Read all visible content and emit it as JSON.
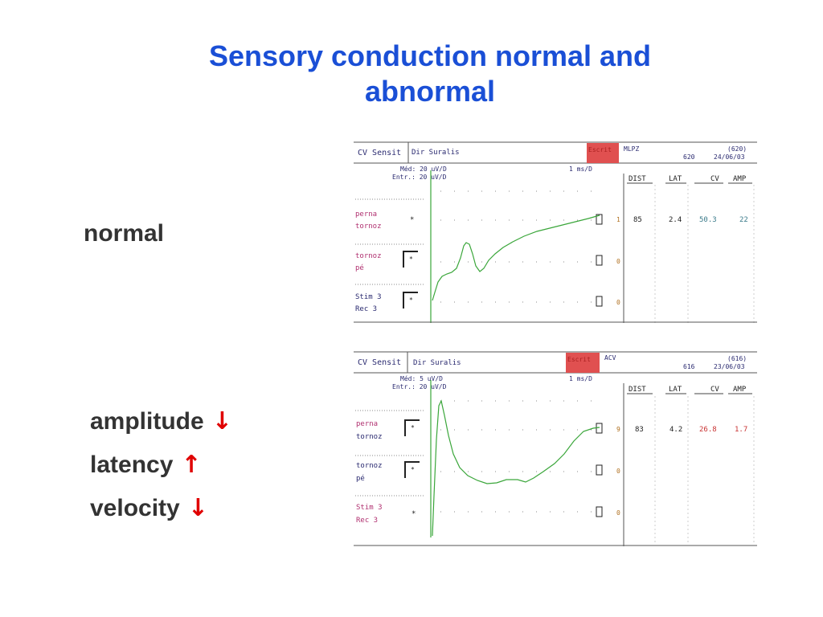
{
  "slide": {
    "title_line1": "Sensory conduction normal and",
    "title_line2": "abnormal",
    "normal_label": "normal",
    "abnormal_items": [
      {
        "label": "amplitude",
        "arrow": "↓"
      },
      {
        "label": "latency",
        "arrow": "↑"
      },
      {
        "label": "velocity",
        "arrow": "↓"
      }
    ]
  },
  "panels": [
    {
      "header": {
        "mode": "CV Sensit",
        "nerve": "Dir Suralis",
        "button": "Escrit",
        "patient": "MLPZ",
        "id1": "(620)",
        "id2": "620",
        "date": "24/06/03"
      },
      "scale": {
        "med": "Méd:  20 uV/D",
        "entr": "Entr.:  20 uV/D",
        "time": "1 ms/D"
      },
      "columns": [
        "DIST",
        "LAT",
        "CV",
        "AMP"
      ],
      "rows": [
        {
          "line1": "perna",
          "line2": "tornoz",
          "index": "1",
          "dist": "85",
          "lat": "2.4",
          "cv": "50.3",
          "amp": "22"
        },
        {
          "line1": "tornoz",
          "line2": "pé",
          "index": "0"
        },
        {
          "line1": "Stim  3",
          "line2": "Rec  3",
          "index": "0"
        }
      ]
    },
    {
      "header": {
        "mode": "CV Sensit",
        "nerve": "Dir Suralis",
        "button": "Escrit",
        "patient": "ACV",
        "id1": "(616)",
        "id2": "616",
        "date": "23/06/03"
      },
      "scale": {
        "med": "Méd:  5 uV/D",
        "entr": "Entr.:  20 uV/D",
        "time": "1 ms/D"
      },
      "columns": [
        "DIST",
        "LAT",
        "CV",
        "AMP"
      ],
      "rows": [
        {
          "line1": "perna",
          "line2": "tornoz",
          "index": "9",
          "dist": "83",
          "lat": "4.2",
          "cv": "26.8",
          "amp": "1.7"
        },
        {
          "line1": "tornoz",
          "line2": "pé",
          "index": "0"
        },
        {
          "line1": "Stim  3",
          "line2": "Rec  3",
          "index": "0"
        }
      ]
    }
  ],
  "colors": {
    "title": "#1a4fd6",
    "arrow": "#e00000",
    "trace": "#3aa63a",
    "site_label": "#b03070",
    "abnormal_value": "#c83232",
    "escrit_button": "#e05050"
  }
}
